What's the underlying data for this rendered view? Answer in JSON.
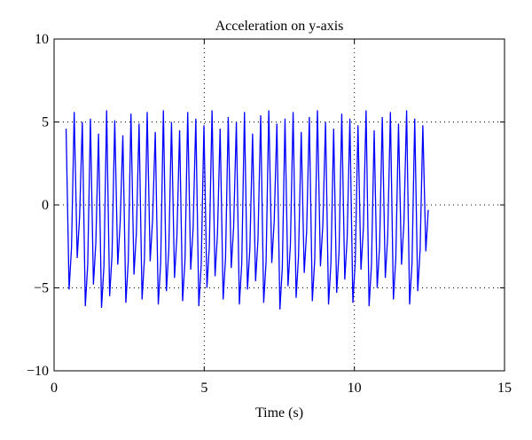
{
  "chart_data": {
    "type": "line",
    "title": "Acceleration on y-axis",
    "xlabel": "Time (s)",
    "color": "#0000ff",
    "grid": true,
    "xlim": [
      0,
      15
    ],
    "xticks": [
      0,
      5,
      10,
      15
    ],
    "ylim": [
      -10,
      10
    ],
    "yticks": [
      {
        "value": -10,
        "label": "−10"
      },
      {
        "value": -5,
        "label": "−5"
      },
      0,
      5,
      10
    ],
    "x": [
      0.4,
      0.5,
      0.58,
      0.67,
      0.77,
      0.85,
      0.94,
      1.04,
      1.12,
      1.21,
      1.31,
      1.39,
      1.48,
      1.58,
      1.66,
      1.75,
      1.85,
      1.93,
      2.02,
      2.12,
      2.2,
      2.29,
      2.39,
      2.47,
      2.56,
      2.66,
      2.74,
      2.83,
      2.93,
      3.01,
      3.1,
      3.2,
      3.28,
      3.37,
      3.47,
      3.55,
      3.64,
      3.74,
      3.82,
      3.91,
      4.01,
      4.09,
      4.18,
      4.28,
      4.36,
      4.45,
      4.55,
      4.63,
      4.72,
      4.82,
      4.9,
      4.99,
      5.09,
      5.17,
      5.26,
      5.36,
      5.44,
      5.53,
      5.63,
      5.71,
      5.8,
      5.9,
      5.98,
      6.07,
      6.17,
      6.25,
      6.34,
      6.44,
      6.52,
      6.61,
      6.71,
      6.79,
      6.88,
      6.98,
      7.06,
      7.15,
      7.25,
      7.33,
      7.42,
      7.52,
      7.6,
      7.69,
      7.79,
      7.87,
      7.96,
      8.06,
      8.14,
      8.23,
      8.33,
      8.41,
      8.5,
      8.6,
      8.68,
      8.77,
      8.87,
      8.95,
      9.04,
      9.14,
      9.22,
      9.31,
      9.41,
      9.49,
      9.58,
      9.68,
      9.76,
      9.85,
      9.95,
      10.03,
      10.12,
      10.22,
      10.3,
      10.39,
      10.49,
      10.57,
      10.66,
      10.76,
      10.84,
      10.93,
      11.03,
      11.11,
      11.2,
      11.3,
      11.38,
      11.47,
      11.57,
      11.65,
      11.74,
      11.84,
      11.92,
      12.01,
      12.11,
      12.19,
      12.28,
      12.38,
      12.46
    ],
    "values": [
      4.6,
      -5.1,
      -2.6,
      5.6,
      -3.2,
      -0.7,
      5.0,
      -6.1,
      -3.6,
      5.2,
      -4.8,
      -2.3,
      4.3,
      -6.2,
      -3.7,
      5.7,
      -5.5,
      -3.0,
      5.1,
      -3.6,
      -1.1,
      4.2,
      -5.9,
      -3.4,
      5.5,
      -4.2,
      -1.7,
      4.9,
      -5.7,
      -3.2,
      5.6,
      -3.4,
      -0.9,
      4.4,
      -6.0,
      -3.5,
      5.7,
      -5.2,
      -2.7,
      5.0,
      -4.4,
      -1.9,
      4.5,
      -5.8,
      -3.3,
      5.6,
      -3.9,
      -1.4,
      5.2,
      -6.1,
      -3.6,
      4.8,
      -5.0,
      -2.5,
      5.7,
      -4.3,
      -1.8,
      4.6,
      -5.7,
      -3.2,
      5.3,
      -3.8,
      -1.3,
      5.0,
      -6.0,
      -3.5,
      5.6,
      -5.1,
      -2.6,
      4.3,
      -4.6,
      -2.1,
      5.4,
      -5.9,
      -3.4,
      5.7,
      -3.5,
      -1.0,
      4.9,
      -6.3,
      -3.8,
      5.2,
      -4.9,
      -2.4,
      5.6,
      -5.6,
      -3.1,
      4.4,
      -4.1,
      -1.6,
      5.3,
      -5.8,
      -3.3,
      5.7,
      -3.7,
      -1.2,
      5.0,
      -6.0,
      -3.5,
      4.6,
      -5.3,
      -2.8,
      5.5,
      -4.5,
      -2.0,
      5.2,
      -5.9,
      -3.4,
      4.8,
      -3.9,
      -1.4,
      5.7,
      -6.1,
      -3.6,
      4.5,
      -5.0,
      -2.5,
      5.3,
      -4.4,
      -1.9,
      5.6,
      -5.7,
      -3.2,
      4.9,
      -3.6,
      -1.1,
      5.7,
      -6.0,
      -3.5,
      5.2,
      -5.2,
      -2.7,
      4.8,
      -2.8,
      -0.3
    ]
  }
}
